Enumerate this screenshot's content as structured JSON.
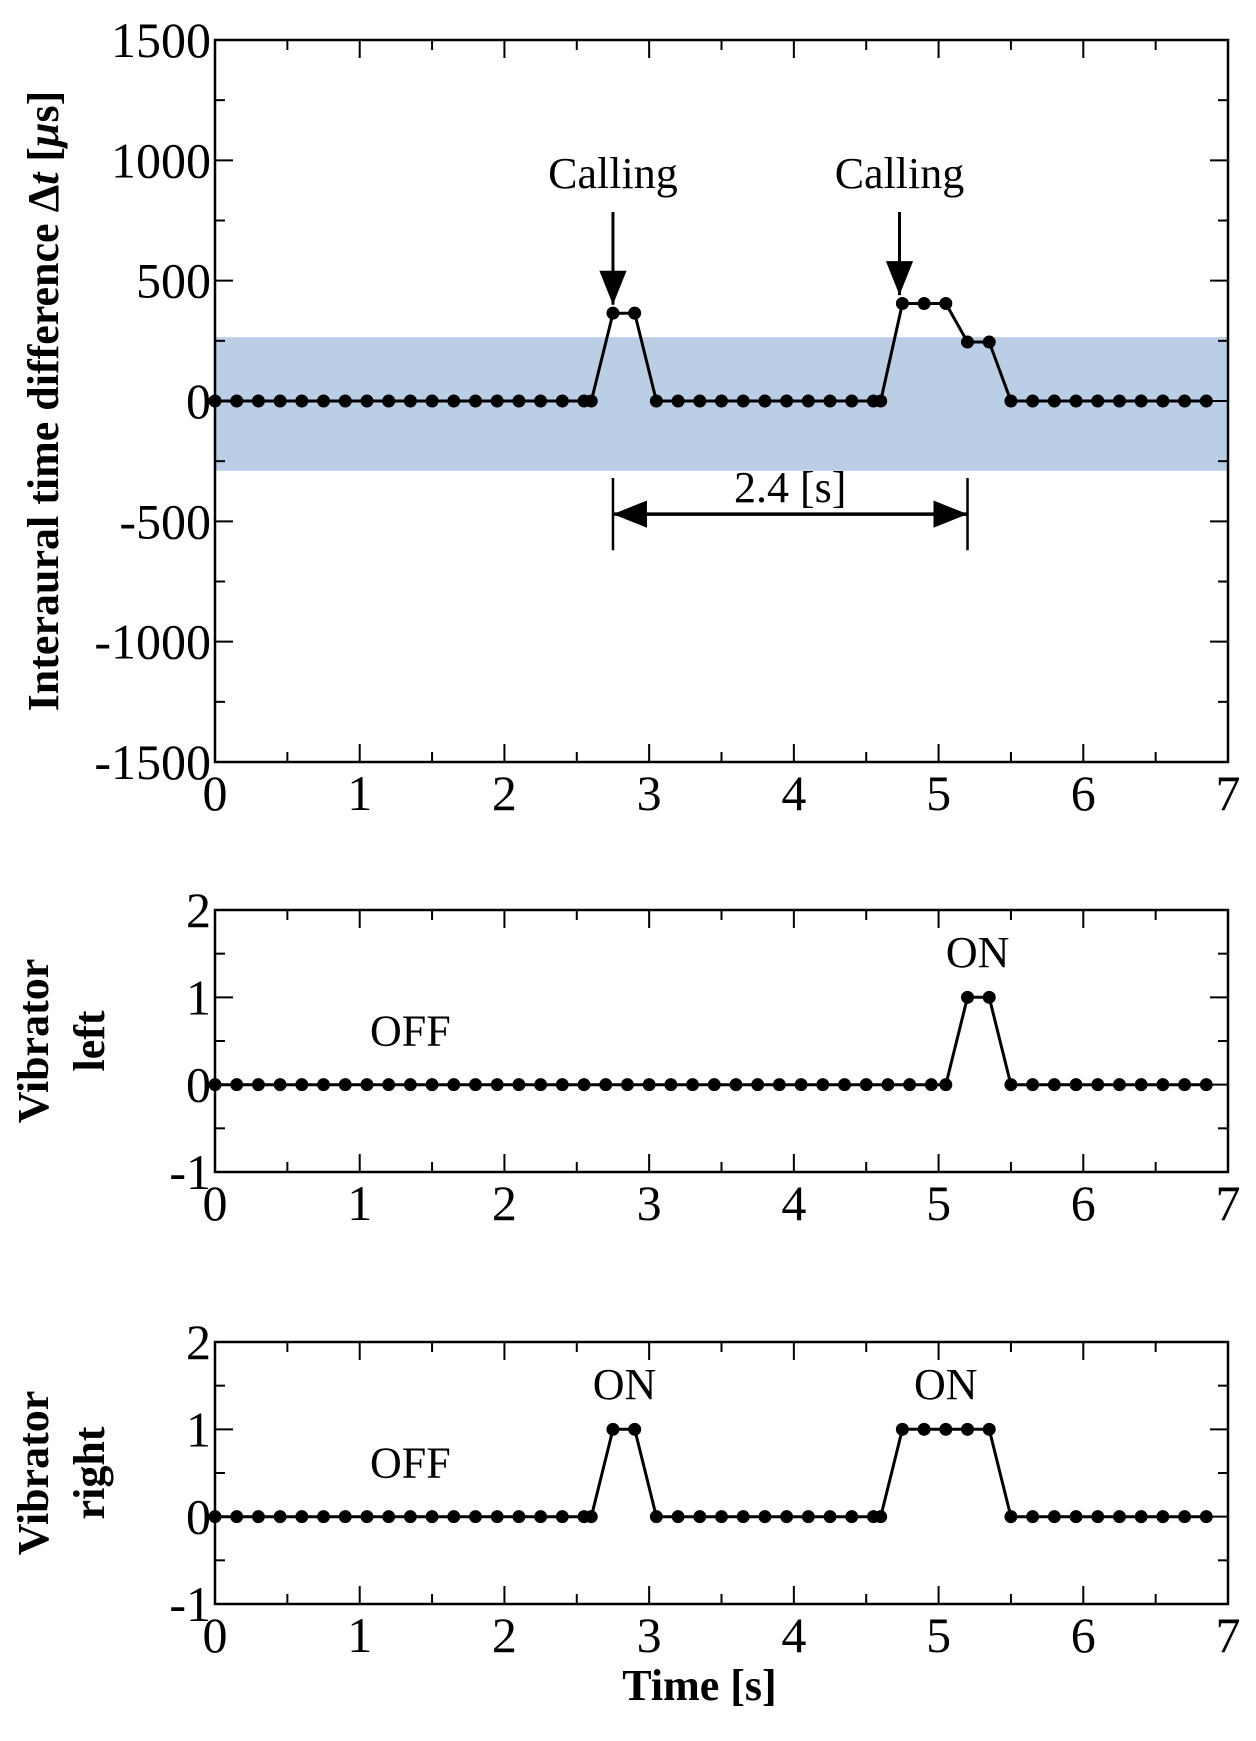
{
  "chart_data": [
    {
      "type": "line",
      "title": "",
      "ylabel": "Interaural time difference Δt [μs]",
      "ylabel_parts": [
        "Interaural time difference ",
        "Δ",
        "t",
        " [",
        "μ",
        "s]"
      ],
      "xlabel": "",
      "xlim": [
        0,
        7
      ],
      "ylim": [
        -1500,
        1500
      ],
      "xticks": [
        "0",
        "1",
        "2",
        "3",
        "4",
        "5",
        "6",
        "7"
      ],
      "yticks": [
        "1500",
        "1000",
        "500",
        "0",
        "-500",
        "-1000",
        "-1500"
      ],
      "ytick_values": [
        1500,
        1000,
        500,
        0,
        -500,
        -1000,
        -1500
      ],
      "band": {
        "y0": -290,
        "y1": 265,
        "color": "#bacfe6"
      },
      "series": [
        {
          "x": [
            0,
            0.15,
            0.3,
            0.45,
            0.6,
            0.75,
            0.9,
            1.05,
            1.2,
            1.35,
            1.5,
            1.65,
            1.8,
            1.95,
            2.1,
            2.25,
            2.4,
            2.55,
            2.6,
            2.75,
            2.9,
            3.05,
            3.2,
            3.35,
            3.5,
            3.65,
            3.8,
            3.95,
            4.1,
            4.25,
            4.4,
            4.55,
            4.6,
            4.75,
            4.9,
            5.05,
            5.2,
            5.35,
            5.5,
            5.65,
            5.8,
            5.95,
            6.1,
            6.25,
            6.4,
            6.55,
            6.7,
            6.85
          ],
          "y": [
            0,
            0,
            0,
            0,
            0,
            0,
            0,
            0,
            0,
            0,
            0,
            0,
            0,
            0,
            0,
            0,
            0,
            0,
            0,
            365,
            365,
            0,
            0,
            0,
            0,
            0,
            0,
            0,
            0,
            0,
            0,
            0,
            0,
            405,
            405,
            405,
            245,
            245,
            0,
            0,
            0,
            0,
            0,
            0,
            0,
            0,
            0,
            0
          ]
        }
      ],
      "annotations": [
        {
          "text": "Calling",
          "x": 2.75,
          "arrow_tip_y": 400
        },
        {
          "text": "Calling",
          "x": 4.73,
          "arrow_tip_y": 440
        }
      ],
      "interval": {
        "label": "2.4 [s]",
        "x0": 2.75,
        "x1": 5.2,
        "y": -470,
        "bar_y0": -320,
        "bar_y1": -620
      }
    },
    {
      "type": "line",
      "title": "",
      "ylabel": "Vibrator left",
      "ylabel_lines": [
        "Vibrator",
        "left"
      ],
      "xlabel": "",
      "xlim": [
        0,
        7
      ],
      "ylim": [
        -1,
        2
      ],
      "xticks": [
        "0",
        "1",
        "2",
        "3",
        "4",
        "5",
        "6",
        "7"
      ],
      "yticks": [
        "2",
        "1",
        "0",
        "-1"
      ],
      "ytick_values": [
        2,
        1,
        0,
        -1
      ],
      "series": [
        {
          "x": [
            0,
            0.15,
            0.3,
            0.45,
            0.6,
            0.75,
            0.9,
            1.05,
            1.2,
            1.35,
            1.5,
            1.65,
            1.8,
            1.95,
            2.1,
            2.25,
            2.4,
            2.55,
            2.7,
            2.85,
            3.0,
            3.15,
            3.3,
            3.45,
            3.6,
            3.75,
            3.9,
            4.05,
            4.2,
            4.35,
            4.5,
            4.65,
            4.8,
            4.95,
            5.05,
            5.2,
            5.35,
            5.5,
            5.65,
            5.8,
            5.95,
            6.1,
            6.25,
            6.4,
            6.55,
            6.7,
            6.85
          ],
          "y": [
            0,
            0,
            0,
            0,
            0,
            0,
            0,
            0,
            0,
            0,
            0,
            0,
            0,
            0,
            0,
            0,
            0,
            0,
            0,
            0,
            0,
            0,
            0,
            0,
            0,
            0,
            0,
            0,
            0,
            0,
            0,
            0,
            0,
            0,
            0,
            1,
            1,
            0,
            0,
            0,
            0,
            0,
            0,
            0,
            0,
            0,
            0
          ]
        }
      ],
      "labels": [
        {
          "text": "OFF",
          "x": 1.35,
          "y": 0.45
        },
        {
          "text": "ON",
          "x": 5.27,
          "y": 1.35
        }
      ]
    },
    {
      "type": "line",
      "title": "",
      "ylabel": "Vibrator right",
      "ylabel_lines": [
        "Vibrator",
        "right"
      ],
      "xlabel": "Time [s]",
      "xlim": [
        0,
        7
      ],
      "ylim": [
        -1,
        2
      ],
      "xticks": [
        "0",
        "1",
        "2",
        "3",
        "4",
        "5",
        "6",
        "7"
      ],
      "yticks": [
        "2",
        "1",
        "0",
        "-1"
      ],
      "ytick_values": [
        2,
        1,
        0,
        -1
      ],
      "series": [
        {
          "x": [
            0,
            0.15,
            0.3,
            0.45,
            0.6,
            0.75,
            0.9,
            1.05,
            1.2,
            1.35,
            1.5,
            1.65,
            1.8,
            1.95,
            2.1,
            2.25,
            2.4,
            2.55,
            2.6,
            2.75,
            2.9,
            3.05,
            3.2,
            3.35,
            3.5,
            3.65,
            3.8,
            3.95,
            4.1,
            4.25,
            4.4,
            4.55,
            4.6,
            4.75,
            4.9,
            5.05,
            5.2,
            5.35,
            5.5,
            5.65,
            5.8,
            5.95,
            6.1,
            6.25,
            6.4,
            6.55,
            6.7,
            6.85
          ],
          "y": [
            0,
            0,
            0,
            0,
            0,
            0,
            0,
            0,
            0,
            0,
            0,
            0,
            0,
            0,
            0,
            0,
            0,
            0,
            0,
            1,
            1,
            0,
            0,
            0,
            0,
            0,
            0,
            0,
            0,
            0,
            0,
            0,
            0,
            1,
            1,
            1,
            1,
            1,
            0,
            0,
            0,
            0,
            0,
            0,
            0,
            0,
            0,
            0
          ]
        }
      ],
      "labels": [
        {
          "text": "OFF",
          "x": 1.35,
          "y": 0.45
        },
        {
          "text": "ON",
          "x": 2.83,
          "y": 1.35
        },
        {
          "text": "ON",
          "x": 5.05,
          "y": 1.35
        }
      ]
    }
  ]
}
